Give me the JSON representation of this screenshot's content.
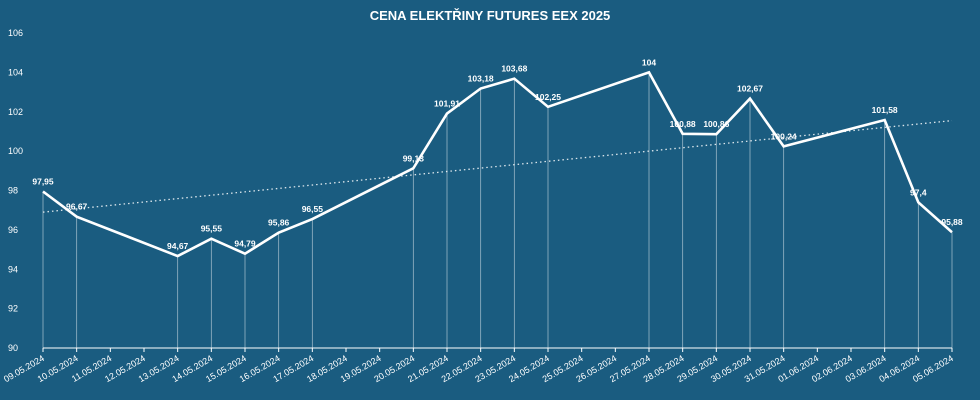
{
  "chart_data": {
    "type": "line",
    "title": "CENA ELEKTŘINY FUTURES EEX 2025",
    "xlabel": "",
    "ylabel": "",
    "ylim": [
      90,
      106
    ],
    "yticks": [
      90,
      92,
      94,
      96,
      98,
      100,
      102,
      104,
      106
    ],
    "categories": [
      "09.05.2024",
      "10.05.2024",
      "11.05.2024",
      "12.05.2024",
      "13.05.2024",
      "14.05.2024",
      "15.05.2024",
      "16.05.2024",
      "17.05.2024",
      "18.05.2024",
      "19.05.2024",
      "20.05.2024",
      "21.05.2024",
      "22.05.2024",
      "23.05.2024",
      "24.05.2024",
      "25.05.2024",
      "26.05.2024",
      "27.05.2024",
      "28.05.2024",
      "29.05.2024",
      "30.05.2024",
      "31.05.2024",
      "01.06.2024",
      "02.06.2024",
      "03.06.2024",
      "04.06.2024",
      "05.06.2024"
    ],
    "series": [
      {
        "name": "Cena",
        "points": [
          {
            "x": "09.05.2024",
            "y": 97.95,
            "label": "97,95"
          },
          {
            "x": "10.05.2024",
            "y": 96.67,
            "label": "96,67"
          },
          {
            "x": "13.05.2024",
            "y": 94.67,
            "label": "94,67"
          },
          {
            "x": "14.05.2024",
            "y": 95.55,
            "label": "95,55"
          },
          {
            "x": "15.05.2024",
            "y": 94.79,
            "label": "94,79"
          },
          {
            "x": "16.05.2024",
            "y": 95.86,
            "label": "95,86"
          },
          {
            "x": "17.05.2024",
            "y": 96.55,
            "label": "96,55"
          },
          {
            "x": "20.05.2024",
            "y": 99.13,
            "label": "99,13"
          },
          {
            "x": "21.05.2024",
            "y": 101.91,
            "label": "101,91"
          },
          {
            "x": "22.05.2024",
            "y": 103.18,
            "label": "103,18"
          },
          {
            "x": "23.05.2024",
            "y": 103.68,
            "label": "103,68"
          },
          {
            "x": "24.05.2024",
            "y": 102.25,
            "label": "102,25"
          },
          {
            "x": "27.05.2024",
            "y": 104,
            "label": "104"
          },
          {
            "x": "28.05.2024",
            "y": 100.88,
            "label": "100,88"
          },
          {
            "x": "29.05.2024",
            "y": 100.86,
            "label": "100,86"
          },
          {
            "x": "30.05.2024",
            "y": 102.67,
            "label": "102,67"
          },
          {
            "x": "31.05.2024",
            "y": 100.24,
            "label": "100,24"
          },
          {
            "x": "03.06.2024",
            "y": 101.58,
            "label": "101,58"
          },
          {
            "x": "04.06.2024",
            "y": 97.4,
            "label": "97,4"
          },
          {
            "x": "05.06.2024",
            "y": 95.88,
            "label": "95,88"
          }
        ]
      }
    ],
    "trendline": {
      "type": "linear",
      "style": "dotted",
      "start": 96.9,
      "end": 101.55
    },
    "drop_lines": true,
    "grid": false,
    "legend": "none",
    "colors": {
      "background": "#1a5c80",
      "line": "#ffffff",
      "text": "#ffffff",
      "axis": "#ffffff"
    }
  }
}
